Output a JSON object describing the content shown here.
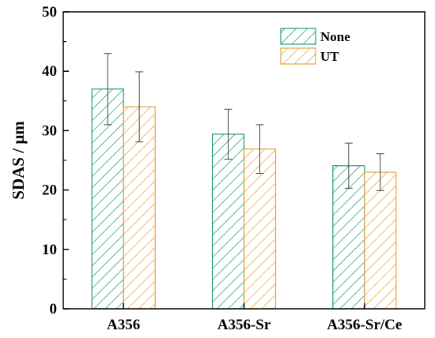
{
  "chart_data": {
    "type": "bar",
    "categories": [
      "A356",
      "A356-Sr",
      "A356-Sr/Ce"
    ],
    "series": [
      {
        "name": "None",
        "values": [
          37.0,
          29.4,
          24.1
        ],
        "errors": [
          6.0,
          4.2,
          3.8
        ],
        "color": "#1f9b7f",
        "pattern": "diagonal-hatch"
      },
      {
        "name": "UT",
        "values": [
          34.0,
          26.9,
          23.0
        ],
        "errors": [
          5.9,
          4.1,
          3.1
        ],
        "color": "#e8a33c",
        "pattern": "diagonal-hatch"
      }
    ],
    "title": "",
    "xlabel": "",
    "ylabel": "SDAS / μm",
    "ylim": [
      0,
      50
    ],
    "yticks": [
      "0",
      "10",
      "20",
      "30",
      "40",
      "50"
    ],
    "grid": false,
    "legend": "top-right"
  }
}
